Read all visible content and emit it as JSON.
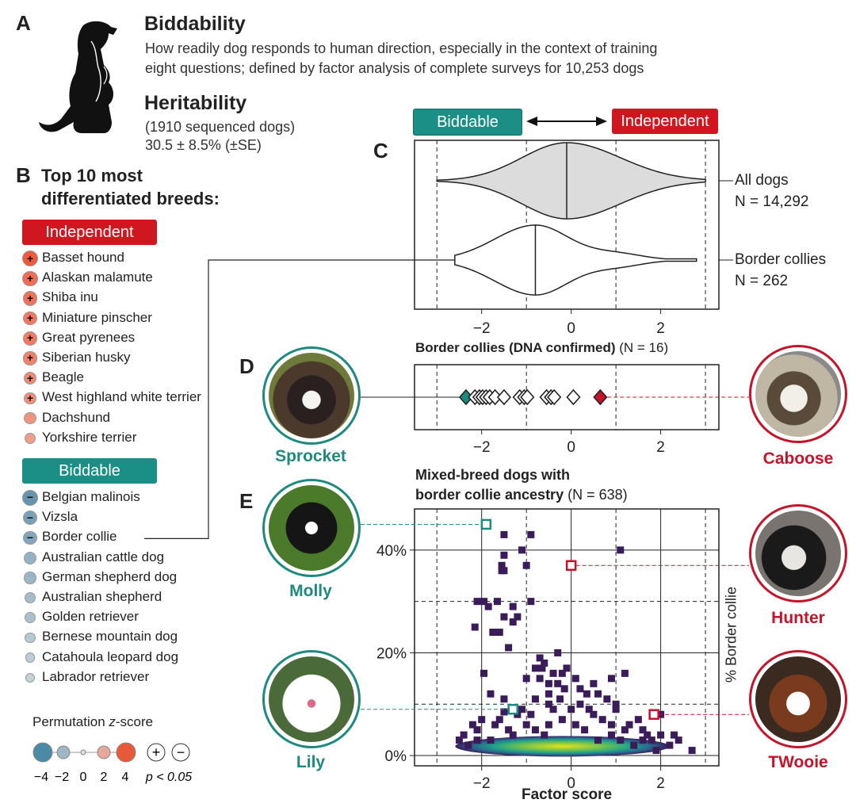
{
  "colors": {
    "teal": "#1e8a7f",
    "red": "#c4142a",
    "independent_pill": "#d0161f",
    "biddable_pill": "#1b8f86",
    "density_purple": "#3b1c5a"
  },
  "panel_a": {
    "letter": "A",
    "title": "Biddability",
    "desc_line1": "How readily dog responds to human direction, especially in the context of training",
    "desc_line2": "eight questions; defined by factor analysis of complete surveys for 10,253 dogs",
    "heritability_title": "Heritability",
    "heritability_line1": "(1910 sequenced dogs)",
    "heritability_line2": "30.5 ± 8.5% (±SE)",
    "icon": "dog-silhouette-icon"
  },
  "panel_b": {
    "letter": "B",
    "title_line1": "Top 10 most",
    "title_line2": "differentiated breeds:",
    "independent_label": "Independent",
    "biddable_label": "Biddable",
    "independent_breeds": [
      {
        "name": "Basset hound",
        "z": 4.2,
        "sig": "+"
      },
      {
        "name": "Alaskan malamute",
        "z": 3.5,
        "sig": "+"
      },
      {
        "name": "Shiba inu",
        "z": 3.3,
        "sig": "+"
      },
      {
        "name": "Miniature pinscher",
        "z": 3.0,
        "sig": "+"
      },
      {
        "name": "Great pyrenees",
        "z": 2.9,
        "sig": "+"
      },
      {
        "name": "Siberian husky",
        "z": 2.7,
        "sig": "+"
      },
      {
        "name": "Beagle",
        "z": 2.4,
        "sig": "+"
      },
      {
        "name": "West highland white terrier",
        "z": 2.2,
        "sig": "+"
      },
      {
        "name": "Dachshund",
        "z": 2.0,
        "sig": ""
      },
      {
        "name": "Yorkshire terrier",
        "z": 1.6,
        "sig": ""
      }
    ],
    "biddable_breeds": [
      {
        "name": "Belgian malinois",
        "z": -3.8,
        "sig": "−"
      },
      {
        "name": "Vizsla",
        "z": -3.2,
        "sig": "−"
      },
      {
        "name": "Border collie",
        "z": -2.9,
        "sig": "−"
      },
      {
        "name": "Australian cattle dog",
        "z": -2.3,
        "sig": ""
      },
      {
        "name": "German shepherd dog",
        "z": -2.1,
        "sig": ""
      },
      {
        "name": "Australian shepherd",
        "z": -1.8,
        "sig": ""
      },
      {
        "name": "Golden retriever",
        "z": -1.6,
        "sig": ""
      },
      {
        "name": "Bernese mountain dog",
        "z": -1.2,
        "sig": ""
      },
      {
        "name": "Catahoula leopard dog",
        "z": -1.0,
        "sig": ""
      },
      {
        "name": "Labrador retriever",
        "z": -0.8,
        "sig": ""
      }
    ],
    "legend": {
      "title": "Permutation ",
      "title_z": "z",
      "title_suffix": "-score",
      "ticks": [
        "−4",
        "−2",
        "0",
        "2",
        "4"
      ],
      "plus": "+",
      "minus": "−",
      "p_label": "p < 0.05"
    }
  },
  "chart_data": [
    {
      "panel": "C",
      "type": "violin",
      "header_left": "Biddable",
      "header_right": "Independent",
      "xlim": [
        -3.5,
        3.3
      ],
      "x_ticks": [
        -2,
        0,
        2
      ],
      "x_tick_labels": [
        "−2",
        "0",
        "2"
      ],
      "series": [
        {
          "name": "All dogs",
          "n_label": "N = 14,292",
          "median": -0.1,
          "min": -3.0,
          "max": 3.0
        },
        {
          "name": "Border collies",
          "n_label": "N = 262",
          "median": -0.8,
          "min": -2.6,
          "max": 2.8
        }
      ]
    },
    {
      "panel": "D",
      "type": "scatter",
      "title": "Border collies (DNA confirmed) ",
      "title_n": "(N = 16)",
      "xlim": [
        -3.5,
        3.3
      ],
      "x_ticks": [
        -2,
        0,
        2
      ],
      "x_tick_labels": [
        "−2",
        "0",
        "2"
      ],
      "values": [
        -2.35,
        -2.15,
        -2.05,
        -1.98,
        -1.9,
        -1.82,
        -1.7,
        -1.5,
        -1.15,
        -1.05,
        -0.98,
        -0.55,
        -0.45,
        -0.38,
        0.05,
        0.65
      ],
      "highlight_min": {
        "name": "Sprocket",
        "value": -2.35
      },
      "highlight_max": {
        "name": "Caboose",
        "value": 0.65
      }
    },
    {
      "panel": "E",
      "type": "scatter-density",
      "title_line1": "Mixed-breed dogs with",
      "title_line2": "border collie ancestry ",
      "title_n": "(N = 638)",
      "xlabel": "Factor score",
      "ylabel": "% Border collie",
      "xlim": [
        -3.5,
        3.3
      ],
      "ylim": [
        -2,
        48
      ],
      "x_ticks": [
        -2,
        0,
        2
      ],
      "x_tick_labels": [
        "−2",
        "0",
        "2"
      ],
      "y_ticks": [
        0,
        20,
        40
      ],
      "y_tick_labels": [
        "0%",
        "20%",
        "40%"
      ],
      "highlighted": [
        {
          "name": "Molly",
          "x": -1.9,
          "y": 45,
          "side": "left"
        },
        {
          "name": "Hunter",
          "x": 0.0,
          "y": 37,
          "side": "right"
        },
        {
          "name": "Lily",
          "x": -1.3,
          "y": 9,
          "side": "left"
        },
        {
          "name": "TWooie",
          "x": 1.85,
          "y": 8,
          "side": "right"
        }
      ],
      "points": [
        [
          -1.95,
          30
        ],
        [
          -1.65,
          30
        ],
        [
          -1.5,
          43
        ],
        [
          -1.55,
          37
        ],
        [
          -1.55,
          36
        ],
        [
          -1.5,
          36
        ],
        [
          -1.5,
          39
        ],
        [
          -1.0,
          37
        ],
        [
          -1.1,
          40
        ],
        [
          -0.9,
          43
        ],
        [
          1.1,
          40
        ],
        [
          -1.85,
          29
        ],
        [
          -2.1,
          30
        ],
        [
          -2.15,
          25
        ],
        [
          -1.3,
          29
        ],
        [
          -1.5,
          27
        ],
        [
          -1.2,
          27
        ],
        [
          -1.3,
          26
        ],
        [
          -0.9,
          30
        ],
        [
          -1.75,
          24
        ],
        [
          -1.6,
          24
        ],
        [
          -1.4,
          21
        ],
        [
          -0.7,
          19
        ],
        [
          -0.6,
          18
        ],
        [
          -0.65,
          17
        ],
        [
          -0.8,
          17
        ],
        [
          -1.0,
          15
        ],
        [
          -0.7,
          15
        ],
        [
          -0.5,
          14
        ],
        [
          -0.4,
          16
        ],
        [
          -0.3,
          14
        ],
        [
          -0.25,
          11
        ],
        [
          -0.5,
          10
        ],
        [
          0.5,
          14
        ],
        [
          0.35,
          12
        ],
        [
          0.6,
          12
        ],
        [
          0.1,
          15
        ],
        [
          0.2,
          13
        ],
        [
          -0.15,
          13
        ],
        [
          -0.5,
          12
        ],
        [
          -1.8,
          12
        ],
        [
          -1.5,
          11
        ],
        [
          -1.95,
          16
        ],
        [
          -0.2,
          16
        ],
        [
          0.4,
          9
        ],
        [
          -0.3,
          20
        ],
        [
          -0.1,
          17
        ],
        [
          0.9,
          15
        ],
        [
          1.2,
          16
        ],
        [
          0.8,
          11
        ],
        [
          1.0,
          10
        ],
        [
          -0.9,
          8
        ],
        [
          -1.6,
          7
        ],
        [
          -2.0,
          7
        ],
        [
          -2.2,
          6
        ],
        [
          -1.4,
          5
        ],
        [
          -0.8,
          5
        ],
        [
          -2.4,
          4
        ],
        [
          -2.1,
          3
        ],
        [
          0.1,
          6
        ],
        [
          0.7,
          7
        ],
        [
          1.3,
          6
        ],
        [
          1.6,
          5
        ],
        [
          2.0,
          4
        ],
        [
          2.4,
          3
        ],
        [
          1.8,
          3
        ],
        [
          2.2,
          2
        ],
        [
          2.7,
          1
        ],
        [
          1.0,
          9
        ],
        [
          0.5,
          8
        ],
        [
          -0.2,
          7
        ],
        [
          -0.5,
          6
        ],
        [
          0.3,
          5
        ],
        [
          1.5,
          7
        ],
        [
          2.0,
          8
        ],
        [
          -1.1,
          9
        ],
        [
          -1.5,
          8.5
        ],
        [
          0.9,
          4
        ],
        [
          1.1,
          3
        ],
        [
          -2.3,
          2
        ],
        [
          1.9,
          1
        ],
        [
          -1.8,
          3
        ],
        [
          -1.3,
          4
        ],
        [
          -0.6,
          4
        ],
        [
          0.6,
          3
        ],
        [
          1.4,
          2
        ],
        [
          1.6,
          3
        ],
        [
          -2.5,
          3
        ],
        [
          -2.1,
          5
        ],
        [
          0.0,
          9
        ],
        [
          -1.0,
          6
        ],
        [
          -1.2,
          8
        ],
        [
          0.2,
          10
        ],
        [
          -0.8,
          11
        ],
        [
          0.9,
          6
        ],
        [
          1.2,
          5
        ],
        [
          1.7,
          4
        ],
        [
          2.3,
          4
        ],
        [
          -0.4,
          9
        ],
        [
          -1.7,
          6
        ]
      ]
    }
  ],
  "panels": {
    "c_letter": "C",
    "d_letter": "D",
    "e_letter": "E"
  },
  "photos": {
    "sprocket": "Sprocket",
    "caboose": "Caboose",
    "molly": "Molly",
    "hunter": "Hunter",
    "lily": "Lily",
    "twooie": "TWooie"
  }
}
